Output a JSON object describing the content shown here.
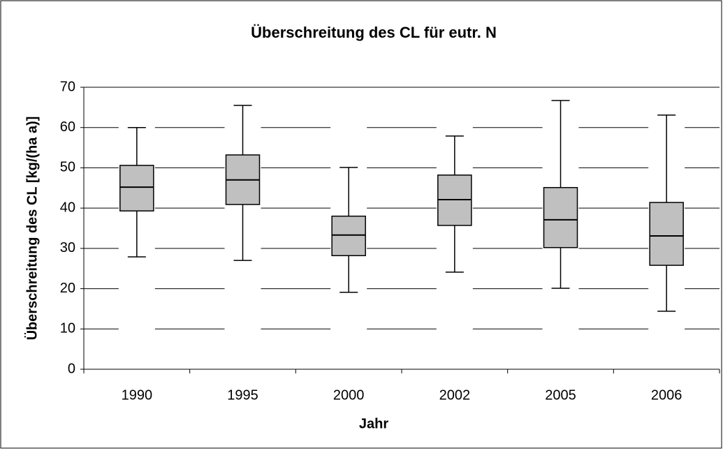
{
  "chart_data": {
    "type": "box",
    "title": "Überschreitung des CL für eutr. N",
    "x_label": "Jahr",
    "y_label": "Überschreitung des CL [kg/(ha a)]",
    "categories": [
      "1990",
      "1995",
      "2000",
      "2002",
      "2005",
      "2006"
    ],
    "min": [
      27.9,
      27,
      19.1,
      24.1,
      20.1,
      14.4
    ],
    "q1": [
      39.3,
      40.9,
      28.2,
      35.7,
      30.2,
      25.8
    ],
    "median": [
      45.2,
      47,
      33.3,
      42.1,
      37.1,
      33.1
    ],
    "q3": [
      50.6,
      53.2,
      38,
      48.2,
      45.1,
      41.4
    ],
    "max": [
      60,
      65.5,
      50.1,
      57.9,
      66.7,
      63.1
    ],
    "color": "#c0c0c0",
    "ylim": [
      0,
      70
    ],
    "yticks": [
      0,
      10,
      20,
      30,
      40,
      50,
      60,
      70
    ],
    "grid": true
  }
}
